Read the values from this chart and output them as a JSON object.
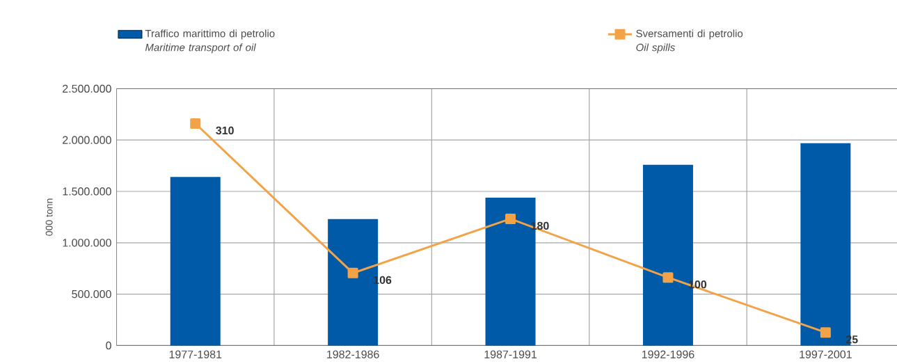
{
  "chart_data": {
    "type": "bar",
    "ylabel": "000 tonn",
    "categories": [
      "1977-1981",
      "1982-1986",
      "1987-1991",
      "1992-1996",
      "1997-2001"
    ],
    "series": [
      {
        "name": "Traffico marittimo di petrolio *Maritime transport of oil*",
        "color": "#005aa8",
        "values": [
          1640000,
          1230000,
          1440000,
          1760000,
          1970000
        ]
      },
      {
        "name": "Sversamenti di petrolio *Oil spills*",
        "type": "line",
        "axis": "y2",
        "color": "#f2a247",
        "marker": "square",
        "values": [
          310,
          106,
          180,
          100,
          25
        ],
        "value_labels": [
          "310",
          "106",
          "180",
          "100",
          "25"
        ]
      }
    ],
    "ylim": [
      0,
      2500000
    ],
    "yticks": [
      0,
      {
        "value": 500000,
        "label": "500.000"
      },
      {
        "value": 1000000,
        "label": "1.000.000"
      },
      {
        "value": 1500000,
        "label": "1.500.000"
      },
      {
        "value": 2000000,
        "label": "2.000.000"
      },
      {
        "value": 2500000,
        "label": "2.500.000"
      }
    ],
    "grid": true,
    "legend": "top"
  }
}
